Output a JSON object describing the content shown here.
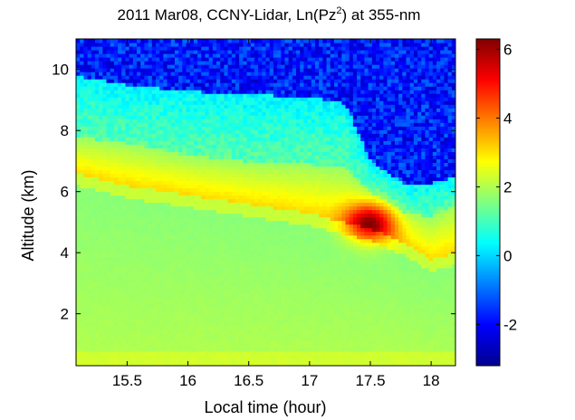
{
  "chart_data": {
    "type": "heatmap",
    "title": {
      "prefix": "2011 Mar08, CCNY-Lidar, Ln(Pz",
      "superscript": "2",
      "suffix": ") at 355-nm"
    },
    "xlabel": "Local time (hour)",
    "ylabel": "Altitude (km)",
    "xlim": [
      15.08,
      18.2
    ],
    "ylim": [
      0.3,
      11.0
    ],
    "x_ticks": [
      15.5,
      16,
      16.5,
      17,
      17.5,
      18
    ],
    "x_tick_labels": [
      "15.5",
      "16",
      "16.5",
      "17",
      "17.5",
      "18"
    ],
    "y_ticks": [
      2,
      4,
      6,
      8,
      10
    ],
    "y_tick_labels": [
      "2",
      "4",
      "6",
      "8",
      "10"
    ],
    "colorbar": {
      "clim": [
        -3.2,
        6.3
      ],
      "ticks": [
        -2,
        0,
        2,
        4,
        6
      ],
      "tick_labels": [
        "-2",
        "0",
        "2",
        "4",
        "6"
      ],
      "colormap": [
        "#00008f",
        "#0000ff",
        "#0080ff",
        "#00ffff",
        "#80ff80",
        "#ffff00",
        "#ff8000",
        "#ff0000",
        "#800000"
      ]
    },
    "layers": {
      "boundary_layer_top_km": [
        [
          15.08,
          6.6
        ],
        [
          15.5,
          6.2
        ],
        [
          16.0,
          5.9
        ],
        [
          16.5,
          5.6
        ],
        [
          17.0,
          5.3
        ],
        [
          17.5,
          4.8
        ],
        [
          17.8,
          4.3
        ],
        [
          18.0,
          3.8
        ],
        [
          18.2,
          4.0
        ]
      ],
      "aerosol_residual_top_km": [
        [
          15.08,
          7.8
        ],
        [
          15.5,
          7.6
        ],
        [
          16.0,
          7.2
        ],
        [
          16.5,
          7.0
        ],
        [
          17.0,
          6.9
        ],
        [
          17.3,
          6.8
        ],
        [
          17.5,
          6.0
        ],
        [
          17.8,
          5.3
        ],
        [
          18.0,
          5.2
        ],
        [
          18.2,
          5.6
        ]
      ],
      "noise_floor_km": [
        [
          15.08,
          9.8
        ],
        [
          15.5,
          9.5
        ],
        [
          16.0,
          9.3
        ],
        [
          16.5,
          9.2
        ],
        [
          17.0,
          9.1
        ],
        [
          17.3,
          8.9
        ],
        [
          17.5,
          7.0
        ],
        [
          17.8,
          6.2
        ],
        [
          18.0,
          6.3
        ],
        [
          18.2,
          6.5
        ]
      ],
      "peak_signal": {
        "time": 17.5,
        "altitude_km": 5.0,
        "value": 6.0
      }
    }
  }
}
